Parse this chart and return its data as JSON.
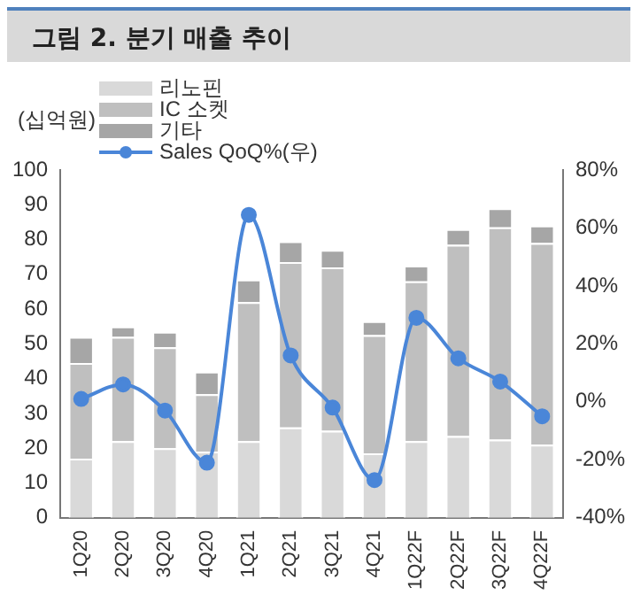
{
  "chart_data": {
    "type": "bar",
    "title": "그림 2. 분기 매출 추이",
    "ylabel": "(십억원)",
    "categories": [
      "1Q20",
      "2Q20",
      "3Q20",
      "4Q20",
      "1Q21",
      "2Q21",
      "3Q21",
      "4Q21",
      "1Q22F",
      "2Q22F",
      "3Q22F",
      "4Q22F"
    ],
    "stacked": true,
    "legend": "top left",
    "grid": false,
    "marker": "circle",
    "series": [
      {
        "name": "리노핀",
        "color": "#d9d9d9",
        "values": [
          17,
          22,
          20,
          19,
          22,
          26,
          25,
          18.5,
          22,
          23.5,
          22.5,
          21
        ]
      },
      {
        "name": "IC 소켓",
        "color": "#bfbfbf",
        "values": [
          27.5,
          30,
          29,
          16.5,
          40,
          47.5,
          47,
          34,
          46,
          55,
          61,
          58
        ]
      },
      {
        "name": "기타",
        "color": "#a6a6a6",
        "values": [
          7.5,
          3,
          4.5,
          6.5,
          6.5,
          6,
          5,
          4,
          4.5,
          4.5,
          5.5,
          5
        ]
      },
      {
        "name": "Sales QoQ%(우)",
        "type": "line",
        "axis": "y2",
        "color": "#4a86d8",
        "values": [
          1,
          6,
          -3,
          -21,
          64.5,
          16,
          -2,
          -27,
          29,
          15,
          7,
          -5
        ]
      }
    ],
    "ylim": [
      0,
      100
    ],
    "yticks": [
      0,
      10,
      20,
      30,
      40,
      50,
      60,
      70,
      80,
      90,
      100
    ],
    "y2lim": [
      -40,
      80
    ],
    "y2ticks": [
      {
        "value": -40,
        "label": "-40%"
      },
      {
        "value": -20,
        "label": "-20%"
      },
      {
        "value": 0,
        "label": "0%"
      },
      {
        "value": 20,
        "label": "20%"
      },
      {
        "value": 40,
        "label": "40%"
      },
      {
        "value": 60,
        "label": "60%"
      },
      {
        "value": 80,
        "label": "80%"
      }
    ]
  }
}
